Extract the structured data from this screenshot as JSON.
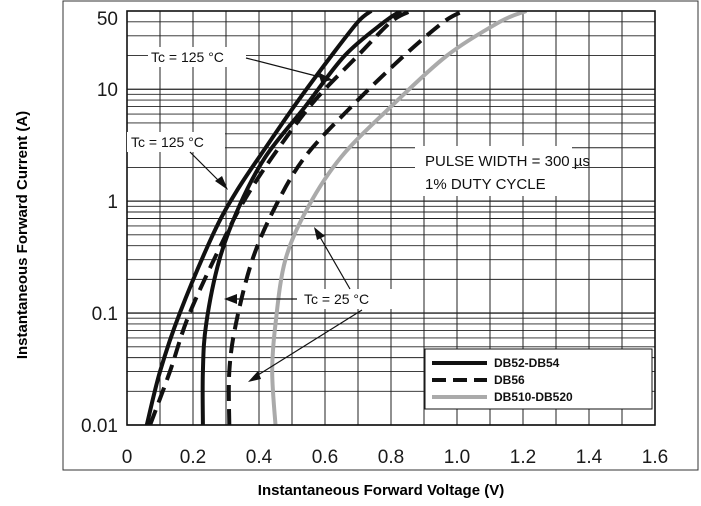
{
  "chart_data": {
    "type": "line",
    "xlabel": "Instantaneous Forward Voltage (V)",
    "ylabel": "Instantaneous Forward Current (A)",
    "xlim": [
      0,
      1.6
    ],
    "ylim": [
      0.01,
      50
    ],
    "yscale": "log",
    "grid": true,
    "legend_position": "bottom-right",
    "x_ticks": [
      "0",
      "0.2",
      "0.4",
      "0.6",
      "0.8",
      "1.0",
      "1.2",
      "1.4",
      "1.6"
    ],
    "y_ticks": [
      "0.01",
      "0.1",
      "1",
      "10",
      "50"
    ],
    "note": [
      "PULSE WIDTH = 300 µs",
      "1% DUTY CYCLE"
    ],
    "annotations": [
      "Tc = 125 °C",
      "Tc = 125 °C",
      "Tc = 25 °C"
    ],
    "series": [
      {
        "name": "DB52-DB54",
        "style": "solid",
        "color": "#111111",
        "curves": [
          {
            "points": [
              [
                0.06,
                0.01
              ],
              [
                0.1,
                0.03
              ],
              [
                0.16,
                0.1
              ],
              [
                0.26,
                0.5
              ],
              [
                0.33,
                1.2
              ],
              [
                0.42,
                3
              ],
              [
                0.52,
                8
              ],
              [
                0.62,
                20
              ],
              [
                0.7,
                40
              ],
              [
                0.74,
                50
              ]
            ]
          },
          {
            "points": [
              [
                0.23,
                0.01
              ],
              [
                0.23,
                0.03
              ],
              [
                0.24,
                0.08
              ],
              [
                0.28,
                0.3
              ],
              [
                0.34,
                0.9
              ],
              [
                0.42,
                2.5
              ],
              [
                0.54,
                7
              ],
              [
                0.66,
                20
              ],
              [
                0.78,
                40
              ],
              [
                0.83,
                50
              ]
            ]
          }
        ]
      },
      {
        "name": "DB56",
        "style": "dashed",
        "color": "#111111",
        "curves": [
          {
            "points": [
              [
                0.07,
                0.01
              ],
              [
                0.13,
                0.03
              ],
              [
                0.19,
                0.1
              ],
              [
                0.3,
                0.5
              ],
              [
                0.37,
                1.2
              ],
              [
                0.46,
                3
              ],
              [
                0.57,
                8
              ],
              [
                0.7,
                20
              ],
              [
                0.8,
                40
              ],
              [
                0.86,
                50
              ]
            ]
          },
          {
            "points": [
              [
                0.31,
                0.01
              ],
              [
                0.31,
                0.03
              ],
              [
                0.33,
                0.08
              ],
              [
                0.38,
                0.3
              ],
              [
                0.45,
                0.9
              ],
              [
                0.54,
                2.5
              ],
              [
                0.68,
                7
              ],
              [
                0.84,
                20
              ],
              [
                0.96,
                40
              ],
              [
                1.02,
                50
              ]
            ]
          }
        ]
      },
      {
        "name": "DB510-DB520",
        "style": "solid",
        "color": "#aaaaaa",
        "curves": [
          {
            "points": [
              [
                0.45,
                0.01
              ],
              [
                0.44,
                0.03
              ],
              [
                0.45,
                0.08
              ],
              [
                0.48,
                0.3
              ],
              [
                0.55,
                0.9
              ],
              [
                0.65,
                2.5
              ],
              [
                0.8,
                7
              ],
              [
                0.97,
                20
              ],
              [
                1.13,
                40
              ],
              [
                1.21,
                50
              ]
            ]
          }
        ]
      }
    ]
  }
}
